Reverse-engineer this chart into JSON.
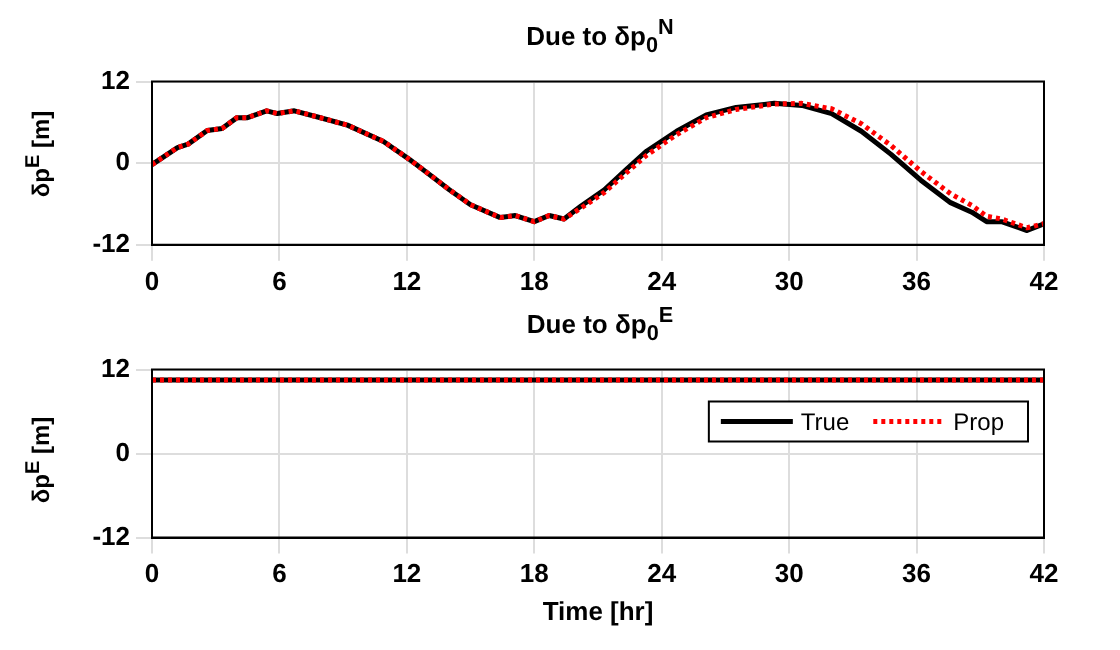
{
  "chart_data": [
    {
      "type": "line",
      "title": "Due to δp$_{0}$$^{N}$",
      "ylabel": "δp$^{E}$ [m]",
      "xlim": [
        0,
        42
      ],
      "ylim": [
        -12,
        12
      ],
      "xticks": [
        0,
        6,
        12,
        18,
        24,
        30,
        36,
        42
      ],
      "yticks": [
        -12,
        0,
        12
      ],
      "grid": true,
      "series": [
        {
          "color": "#000000",
          "line_style": "solid",
          "x": [
            0,
            1.2,
            1.7,
            2.6,
            3.3,
            4,
            4.5,
            5.4,
            5.9,
            6.7,
            7.8,
            9.2,
            10.9,
            12.1,
            13,
            14,
            15,
            16.4,
            17.1,
            18,
            18.7,
            19.4,
            20.2,
            21.3,
            22.3,
            23.3,
            24.7,
            26.1,
            27.5,
            29.3,
            30.6,
            32,
            33.4,
            34.8,
            36.2,
            37.6,
            38.6,
            39.3,
            40,
            41.2,
            42
          ],
          "values": [
            -0.2,
            2.3,
            2.8,
            4.8,
            5.1,
            6.7,
            6.7,
            7.7,
            7.3,
            7.7,
            6.8,
            5.6,
            3.2,
            0.6,
            -1.5,
            -3.9,
            -6.1,
            -8,
            -7.7,
            -8.6,
            -7.7,
            -8.2,
            -6.3,
            -3.9,
            -1,
            1.8,
            4.7,
            7.1,
            8.2,
            8.8,
            8.5,
            7.3,
            4.7,
            1.3,
            -2.5,
            -5.8,
            -7.2,
            -8.6,
            -8.6,
            -9.9,
            -8.9
          ]
        },
        {
          "color": "#ff0000",
          "line_style": "dotted",
          "x": [
            0,
            1.2,
            1.7,
            2.6,
            3.3,
            4,
            4.5,
            5.4,
            5.9,
            6.7,
            7.8,
            9.2,
            10.9,
            12.1,
            13,
            14,
            15,
            16.4,
            17.1,
            18,
            18.7,
            19.4,
            20.2,
            21.3,
            22.3,
            23.3,
            24.7,
            26.1,
            27.5,
            29.3,
            30.6,
            32,
            33.4,
            34.8,
            36.2,
            37.6,
            38.6,
            39.3,
            40,
            41.2,
            42
          ],
          "values": [
            -0.2,
            2.3,
            2.8,
            4.8,
            5.1,
            6.7,
            6.7,
            7.7,
            7.3,
            7.7,
            6.8,
            5.6,
            3.2,
            0.6,
            -1.5,
            -3.9,
            -6.1,
            -8,
            -7.7,
            -8.6,
            -7.7,
            -8.2,
            -6.6,
            -4.3,
            -1.5,
            1.2,
            4.2,
            6.7,
            7.9,
            8.7,
            8.8,
            8,
            5.8,
            2.6,
            -1.2,
            -4.5,
            -6.2,
            -7.8,
            -8.2,
            -9.5,
            -8.9
          ]
        }
      ]
    },
    {
      "type": "line",
      "title": "Due to δp$_{0}$$^{E}$",
      "ylabel": "δp$^{E}$ [m]",
      "xlabel": "Time [hr]",
      "xlim": [
        0,
        42
      ],
      "ylim": [
        -12,
        12
      ],
      "xticks": [
        0,
        6,
        12,
        18,
        24,
        30,
        36,
        42
      ],
      "yticks": [
        -12,
        0,
        12
      ],
      "grid": true,
      "legend": "top right",
      "series": [
        {
          "name": "True",
          "color": "#000000",
          "line_style": "solid",
          "x": [
            0,
            42
          ],
          "values": [
            10.5,
            10.5
          ]
        },
        {
          "name": "Prop",
          "color": "#ff0000",
          "line_style": "dotted",
          "x": [
            0,
            42
          ],
          "values": [
            10.5,
            10.5
          ]
        }
      ]
    }
  ]
}
